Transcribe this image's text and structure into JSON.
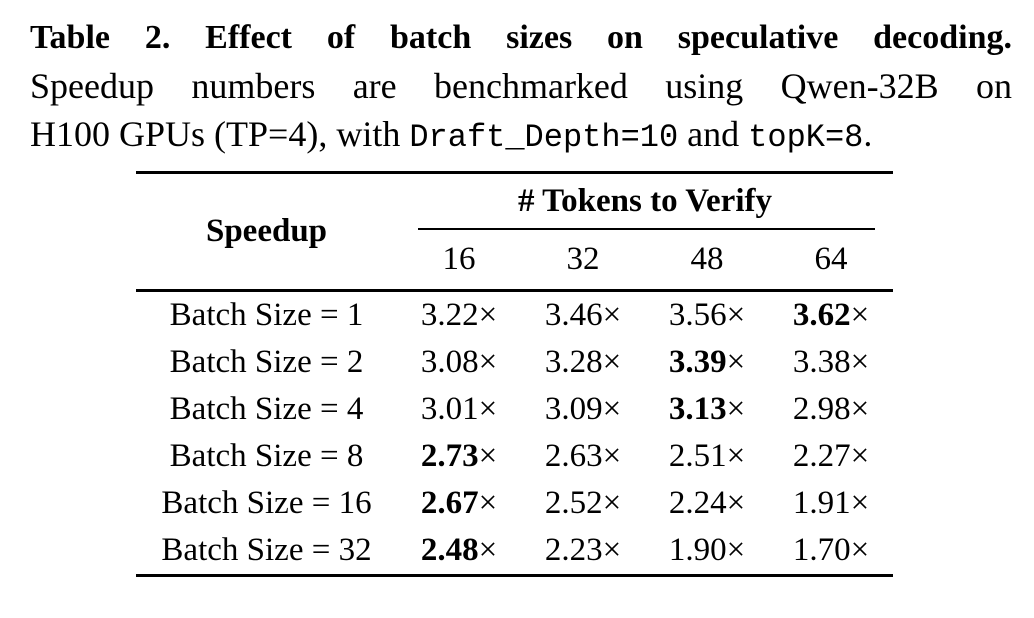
{
  "page": {
    "background_color": "#ffffff",
    "text_color": "#000000"
  },
  "caption": {
    "line1": "Table 2. Effect of batch sizes on speculative decoding.",
    "line2": "Speedup numbers are benchmarked using Qwen-32B on",
    "line3": {
      "seg1": "H100 GPUs (TP=4), with ",
      "code1": "Draft_Depth=10",
      "seg2": " and ",
      "code2": "topK=8",
      "seg3": "."
    }
  },
  "table": {
    "corner_header": "Speedup",
    "group_header": "# Tokens to Verify",
    "col_headers": [
      "16",
      "32",
      "48",
      "64"
    ],
    "times_symbol": "×",
    "rows": [
      {
        "label": "Batch Size = 1",
        "values": [
          {
            "v": "3.22",
            "bold": false
          },
          {
            "v": "3.46",
            "bold": false
          },
          {
            "v": "3.56",
            "bold": false
          },
          {
            "v": "3.62",
            "bold": true
          }
        ]
      },
      {
        "label": "Batch Size = 2",
        "values": [
          {
            "v": "3.08",
            "bold": false
          },
          {
            "v": "3.28",
            "bold": false
          },
          {
            "v": "3.39",
            "bold": true
          },
          {
            "v": "3.38",
            "bold": false
          }
        ]
      },
      {
        "label": "Batch Size = 4",
        "values": [
          {
            "v": "3.01",
            "bold": false
          },
          {
            "v": "3.09",
            "bold": false
          },
          {
            "v": "3.13",
            "bold": true
          },
          {
            "v": "2.98",
            "bold": false
          }
        ]
      },
      {
        "label": "Batch Size = 8",
        "values": [
          {
            "v": "2.73",
            "bold": true
          },
          {
            "v": "2.63",
            "bold": false
          },
          {
            "v": "2.51",
            "bold": false
          },
          {
            "v": "2.27",
            "bold": false
          }
        ]
      },
      {
        "label": "Batch Size = 16",
        "values": [
          {
            "v": "2.67",
            "bold": true
          },
          {
            "v": "2.52",
            "bold": false
          },
          {
            "v": "2.24",
            "bold": false
          },
          {
            "v": "1.91",
            "bold": false
          }
        ]
      },
      {
        "label": "Batch Size = 32",
        "values": [
          {
            "v": "2.48",
            "bold": true
          },
          {
            "v": "2.23",
            "bold": false
          },
          {
            "v": "1.90",
            "bold": false
          },
          {
            "v": "1.70",
            "bold": false
          }
        ]
      }
    ]
  }
}
